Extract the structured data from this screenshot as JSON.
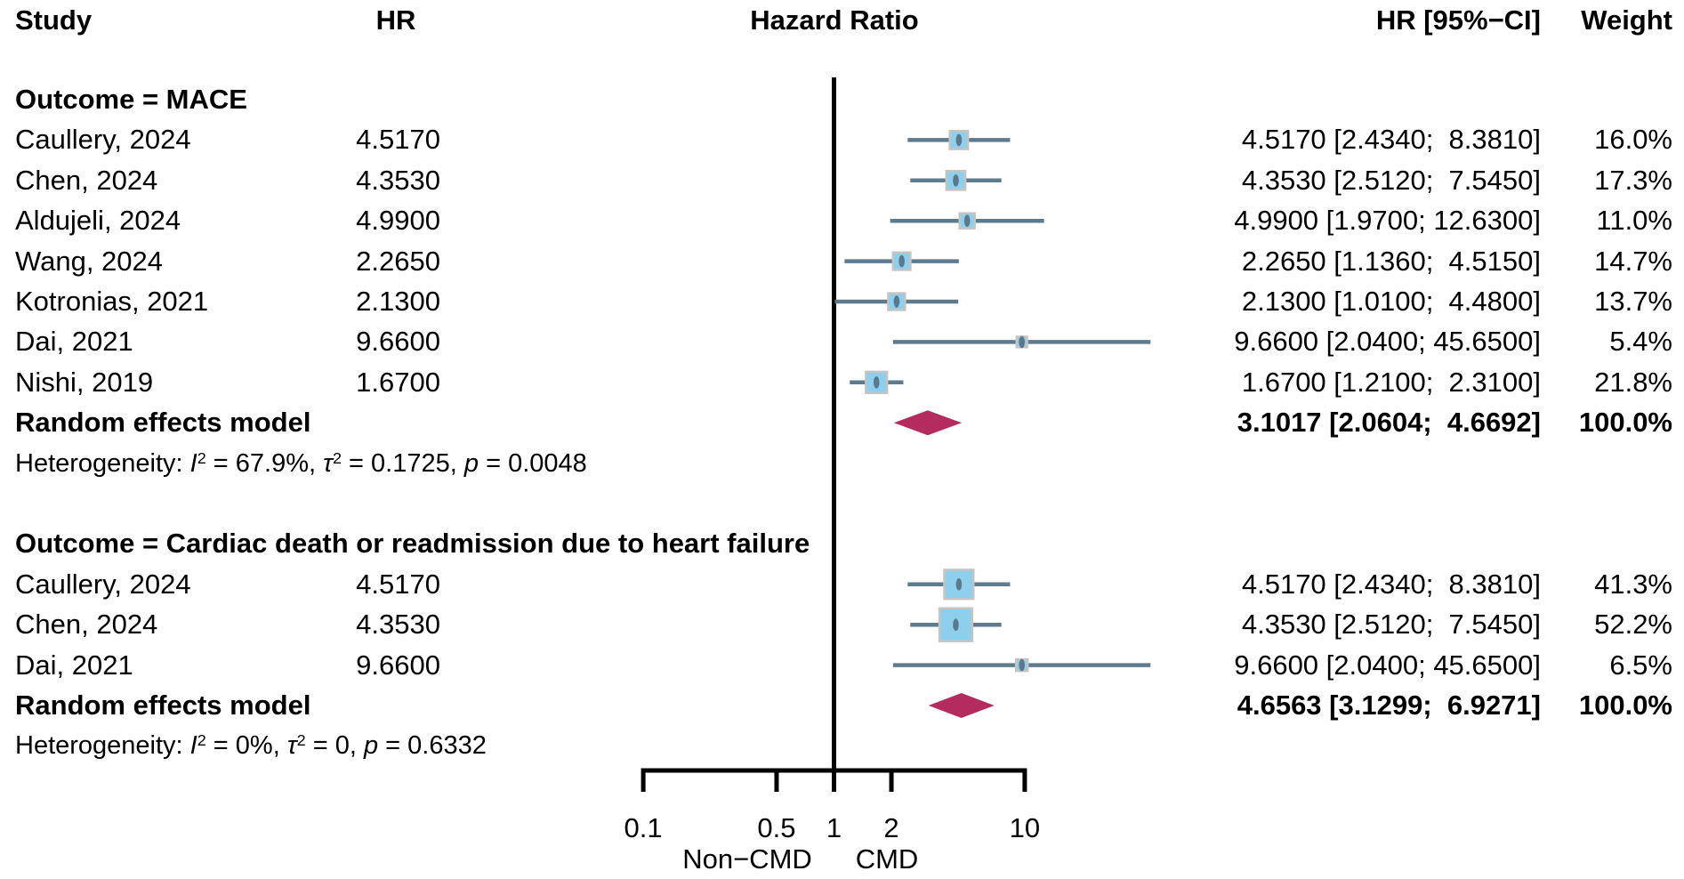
{
  "header": {
    "study": "Study",
    "hr": "HR",
    "plot": "Hazard Ratio",
    "ci": "HR [95%−CI]",
    "weight": "Weight"
  },
  "colors": {
    "background": "#ffffff",
    "text": "#000000",
    "axis": "#000000",
    "reference_line": "#000000",
    "ci_line": "#5e7a8e",
    "point_dot": "#5c788c",
    "square_fill": "#8dcfec",
    "square_border": "#c6c4c3",
    "diamond": "#b42b60"
  },
  "axis": {
    "scale": "log",
    "ticks": [
      0.1,
      0.5,
      1,
      2,
      10
    ],
    "tick_labels": [
      "0.1",
      "0.5",
      "1",
      "2",
      "10"
    ],
    "reference_value": 1,
    "left_label": "Non−CMD",
    "right_label": "CMD"
  },
  "chart_data": {
    "type": "forest",
    "title": "Hazard Ratio",
    "x_range": [
      0.1,
      10
    ],
    "groups": [
      {
        "heading": "Outcome = MACE",
        "studies": [
          {
            "study": "Caullery, 2024",
            "hr_text": "4.5170",
            "hr": 4.517,
            "lo": 2.434,
            "hi": 8.381,
            "ci_text": "4.5170 [2.4340;  8.3810]",
            "weight": 16.0,
            "weight_text": "16.0%"
          },
          {
            "study": "Chen, 2024",
            "hr_text": "4.3530",
            "hr": 4.353,
            "lo": 2.512,
            "hi": 7.545,
            "ci_text": "4.3530 [2.5120;  7.5450]",
            "weight": 17.3,
            "weight_text": "17.3%"
          },
          {
            "study": "Aldujeli, 2024",
            "hr_text": "4.9900",
            "hr": 4.99,
            "lo": 1.97,
            "hi": 12.63,
            "ci_text": "4.9900 [1.9700; 12.6300]",
            "weight": 11.0,
            "weight_text": "11.0%"
          },
          {
            "study": "Wang, 2024",
            "hr_text": "2.2650",
            "hr": 2.265,
            "lo": 1.136,
            "hi": 4.515,
            "ci_text": "2.2650 [1.1360;  4.5150]",
            "weight": 14.7,
            "weight_text": "14.7%"
          },
          {
            "study": "Kotronias, 2021",
            "hr_text": "2.1300",
            "hr": 2.13,
            "lo": 1.01,
            "hi": 4.48,
            "ci_text": "2.1300 [1.0100;  4.4800]",
            "weight": 13.7,
            "weight_text": "13.7%"
          },
          {
            "study": "Dai, 2021",
            "hr_text": "9.6600",
            "hr": 9.66,
            "lo": 2.04,
            "hi": 45.65,
            "ci_text": "9.6600 [2.0400; 45.6500]",
            "weight": 5.4,
            "weight_text": "5.4%"
          },
          {
            "study": "Nishi, 2019",
            "hr_text": "1.6700",
            "hr": 1.67,
            "lo": 1.21,
            "hi": 2.31,
            "ci_text": "1.6700 [1.2100;  2.3100]",
            "weight": 21.8,
            "weight_text": "21.8%"
          }
        ],
        "summary": {
          "label": "Random effects model",
          "hr": 3.1017,
          "lo": 2.0604,
          "hi": 4.6692,
          "ci_text": "3.1017 [2.0604;  4.6692]",
          "weight_text": "100.0%"
        },
        "heterogeneity": [
          {
            "t": "Heterogeneity: "
          },
          {
            "t": "I",
            "i": true
          },
          {
            "t": "2",
            "sup": true
          },
          {
            "t": " = 67.9%, "
          },
          {
            "t": "τ",
            "i": true
          },
          {
            "t": "2",
            "sup": true
          },
          {
            "t": " = 0.1725, "
          },
          {
            "t": "p",
            "i": true
          },
          {
            "t": " = 0.0048"
          }
        ]
      },
      {
        "heading": "Outcome = Cardiac death or readmission due to heart failure",
        "studies": [
          {
            "study": "Caullery, 2024",
            "hr_text": "4.5170",
            "hr": 4.517,
            "lo": 2.434,
            "hi": 8.381,
            "ci_text": "4.5170 [2.4340;  8.3810]",
            "weight": 41.3,
            "weight_text": "41.3%"
          },
          {
            "study": "Chen, 2024",
            "hr_text": "4.3530",
            "hr": 4.353,
            "lo": 2.512,
            "hi": 7.545,
            "ci_text": "4.3530 [2.5120;  7.5450]",
            "weight": 52.2,
            "weight_text": "52.2%"
          },
          {
            "study": "Dai, 2021",
            "hr_text": "9.6600",
            "hr": 9.66,
            "lo": 2.04,
            "hi": 45.65,
            "ci_text": "9.6600 [2.0400; 45.6500]",
            "weight": 6.5,
            "weight_text": "6.5%"
          }
        ],
        "summary": {
          "label": "Random effects model",
          "hr": 4.6563,
          "lo": 3.1299,
          "hi": 6.9271,
          "ci_text": "4.6563 [3.1299;  6.9271]",
          "weight_text": "100.0%"
        },
        "heterogeneity": [
          {
            "t": "Heterogeneity: "
          },
          {
            "t": "I",
            "i": true
          },
          {
            "t": "2",
            "sup": true
          },
          {
            "t": " = 0%, "
          },
          {
            "t": "τ",
            "i": true
          },
          {
            "t": "2",
            "sup": true
          },
          {
            "t": " = 0, "
          },
          {
            "t": "p",
            "i": true
          },
          {
            "t": " = 0.6332"
          }
        ]
      }
    ]
  }
}
